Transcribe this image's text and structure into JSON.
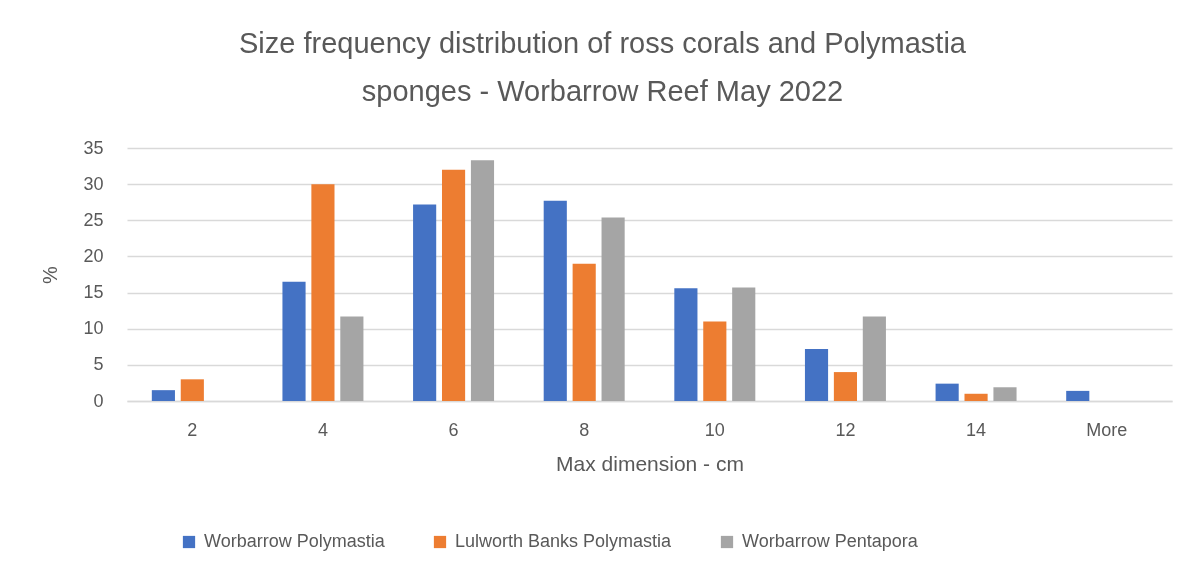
{
  "chart_data": {
    "type": "bar",
    "title": "Size frequency distribution of ross corals and Polymastia sponges  - Worbarrow Reef May 2022",
    "xlabel": "Max dimension - cm",
    "ylabel": "%",
    "categories": [
      "2",
      "4",
      "6",
      "8",
      "10",
      "12",
      "14",
      "More"
    ],
    "series": [
      {
        "name": "Worbarrow Polymastia",
        "color": "#4472c4",
        "values": [
          1.5,
          16.5,
          27.2,
          27.7,
          15.6,
          7.2,
          2.4,
          1.4
        ]
      },
      {
        "name": "Lulworth Banks Polymastia",
        "color": "#ed7d31",
        "values": [
          3,
          30,
          32,
          19,
          11,
          4,
          1,
          null
        ]
      },
      {
        "name": "Worbarrow Pentapora",
        "color": "#a5a5a5",
        "values": [
          null,
          11.7,
          33.3,
          25.4,
          15.7,
          11.7,
          1.9,
          null
        ]
      }
    ],
    "ylim": [
      0,
      35
    ],
    "yticks": [
      0,
      5,
      10,
      15,
      20,
      25,
      30,
      35
    ],
    "grid": "y",
    "legend": "bottom"
  }
}
